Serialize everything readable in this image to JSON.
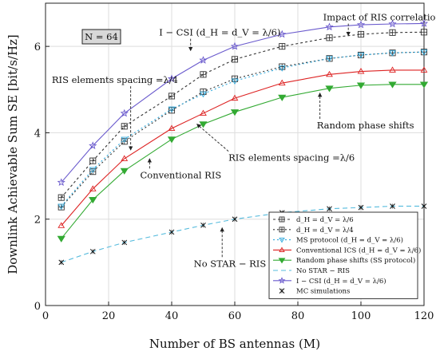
{
  "chart_data": {
    "type": "line",
    "xlabel": "Number of BS antennas (M)",
    "ylabel": "Downlink Achievable Sum SE [bit/s/Hz]",
    "xlim": [
      0,
      120
    ],
    "ylim": [
      0,
      7
    ],
    "x_ticks": [
      0,
      20,
      40,
      60,
      80,
      100,
      120
    ],
    "y_ticks": [
      0,
      2,
      4,
      6
    ],
    "grid": true,
    "legend_position": "bottom-right",
    "param_box": "N = 64",
    "series": [
      {
        "name": "d_H = d_V = λ/6",
        "color": "#333333",
        "dash": "3,3",
        "marker": "square-cross",
        "x": [
          5,
          15,
          25,
          40,
          50,
          60,
          75,
          90,
          100,
          110,
          120
        ],
        "y": [
          2.5,
          3.35,
          4.15,
          4.85,
          5.35,
          5.7,
          6.0,
          6.2,
          6.28,
          6.32,
          6.33
        ]
      },
      {
        "name": "d_H = d_V = λ/4",
        "color": "#333333",
        "dash": "2,3",
        "marker": "square-cross",
        "x": [
          5,
          15,
          25,
          40,
          50,
          60,
          75,
          90,
          100,
          110,
          120
        ],
        "y": [
          2.28,
          3.1,
          3.8,
          4.52,
          4.95,
          5.25,
          5.53,
          5.72,
          5.8,
          5.85,
          5.87
        ]
      },
      {
        "name": "MS protocol (d_H = d_V = λ/6)",
        "color": "#33aadd",
        "dash": "2,3",
        "marker": "triangle-down",
        "x": [
          5,
          15,
          25,
          40,
          50,
          60,
          75,
          90,
          100,
          110,
          120
        ],
        "y": [
          2.3,
          3.15,
          3.85,
          4.55,
          4.9,
          5.2,
          5.5,
          5.72,
          5.8,
          5.85,
          5.87
        ]
      },
      {
        "name": "Conventional ICS (d_H = d_V = λ/6)",
        "color": "#dd2222",
        "dash": "",
        "marker": "triangle-up-open",
        "x": [
          5,
          15,
          25,
          40,
          50,
          60,
          75,
          90,
          100,
          110,
          120
        ],
        "y": [
          1.85,
          2.7,
          3.4,
          4.1,
          4.45,
          4.8,
          5.15,
          5.35,
          5.42,
          5.45,
          5.45
        ]
      },
      {
        "name": "Random phase shifts (SS protocol)",
        "color": "#33aa33",
        "dash": "",
        "marker": "triangle-down-filled",
        "x": [
          5,
          15,
          25,
          40,
          50,
          60,
          75,
          90,
          100,
          110,
          120
        ],
        "y": [
          1.55,
          2.45,
          3.12,
          3.85,
          4.2,
          4.48,
          4.82,
          5.03,
          5.1,
          5.12,
          5.12
        ]
      },
      {
        "name": "No STAR − RIS",
        "color": "#55bbdd",
        "dash": "6,4",
        "marker": "none",
        "x": [
          5,
          15,
          25,
          40,
          50,
          60,
          75,
          90,
          100,
          110,
          120
        ],
        "y": [
          1.0,
          1.25,
          1.46,
          1.7,
          1.86,
          2.0,
          2.15,
          2.24,
          2.27,
          2.3,
          2.3
        ]
      },
      {
        "name": "I − CSI (d_H = d_V = λ/6)",
        "color": "#6a5acd",
        "dash": "",
        "marker": "star",
        "x": [
          5,
          15,
          25,
          40,
          50,
          60,
          75,
          90,
          100,
          110,
          120
        ],
        "y": [
          2.85,
          3.7,
          4.45,
          5.25,
          5.68,
          6.0,
          6.28,
          6.45,
          6.5,
          6.52,
          6.53
        ]
      },
      {
        "name": "MC simulations",
        "color": "#111111",
        "dash": "",
        "marker": "x-star",
        "mc": true
      }
    ],
    "annotations": [
      {
        "text": "I − CSI (d_H = d_V = λ/6)",
        "x": 36,
        "y": 6.25,
        "ax": 46,
        "ay": 5.9
      },
      {
        "text": "Impact of RIS correlation",
        "x": 88,
        "y": 6.6,
        "ax": 96,
        "ay": 6.25
      },
      {
        "text": "RIS elements spacing =λ/4",
        "x": 2,
        "y": 5.15,
        "ax": 27,
        "ay": 3.6
      },
      {
        "text": "Random phase shifts",
        "x": 86,
        "y": 4.1,
        "ax": 87,
        "ay": 4.92
      },
      {
        "text": "RIS elements spacing =λ/6",
        "x": 58,
        "y": 3.35,
        "ax": 48,
        "ay": 4.2
      },
      {
        "text": "Conventional RIS",
        "x": 30,
        "y": 2.95,
        "ax": 33,
        "ay": 3.4
      },
      {
        "text": "No STAR − RIS",
        "x": 47,
        "y": 0.9,
        "ax": 56,
        "ay": 1.8
      }
    ]
  }
}
